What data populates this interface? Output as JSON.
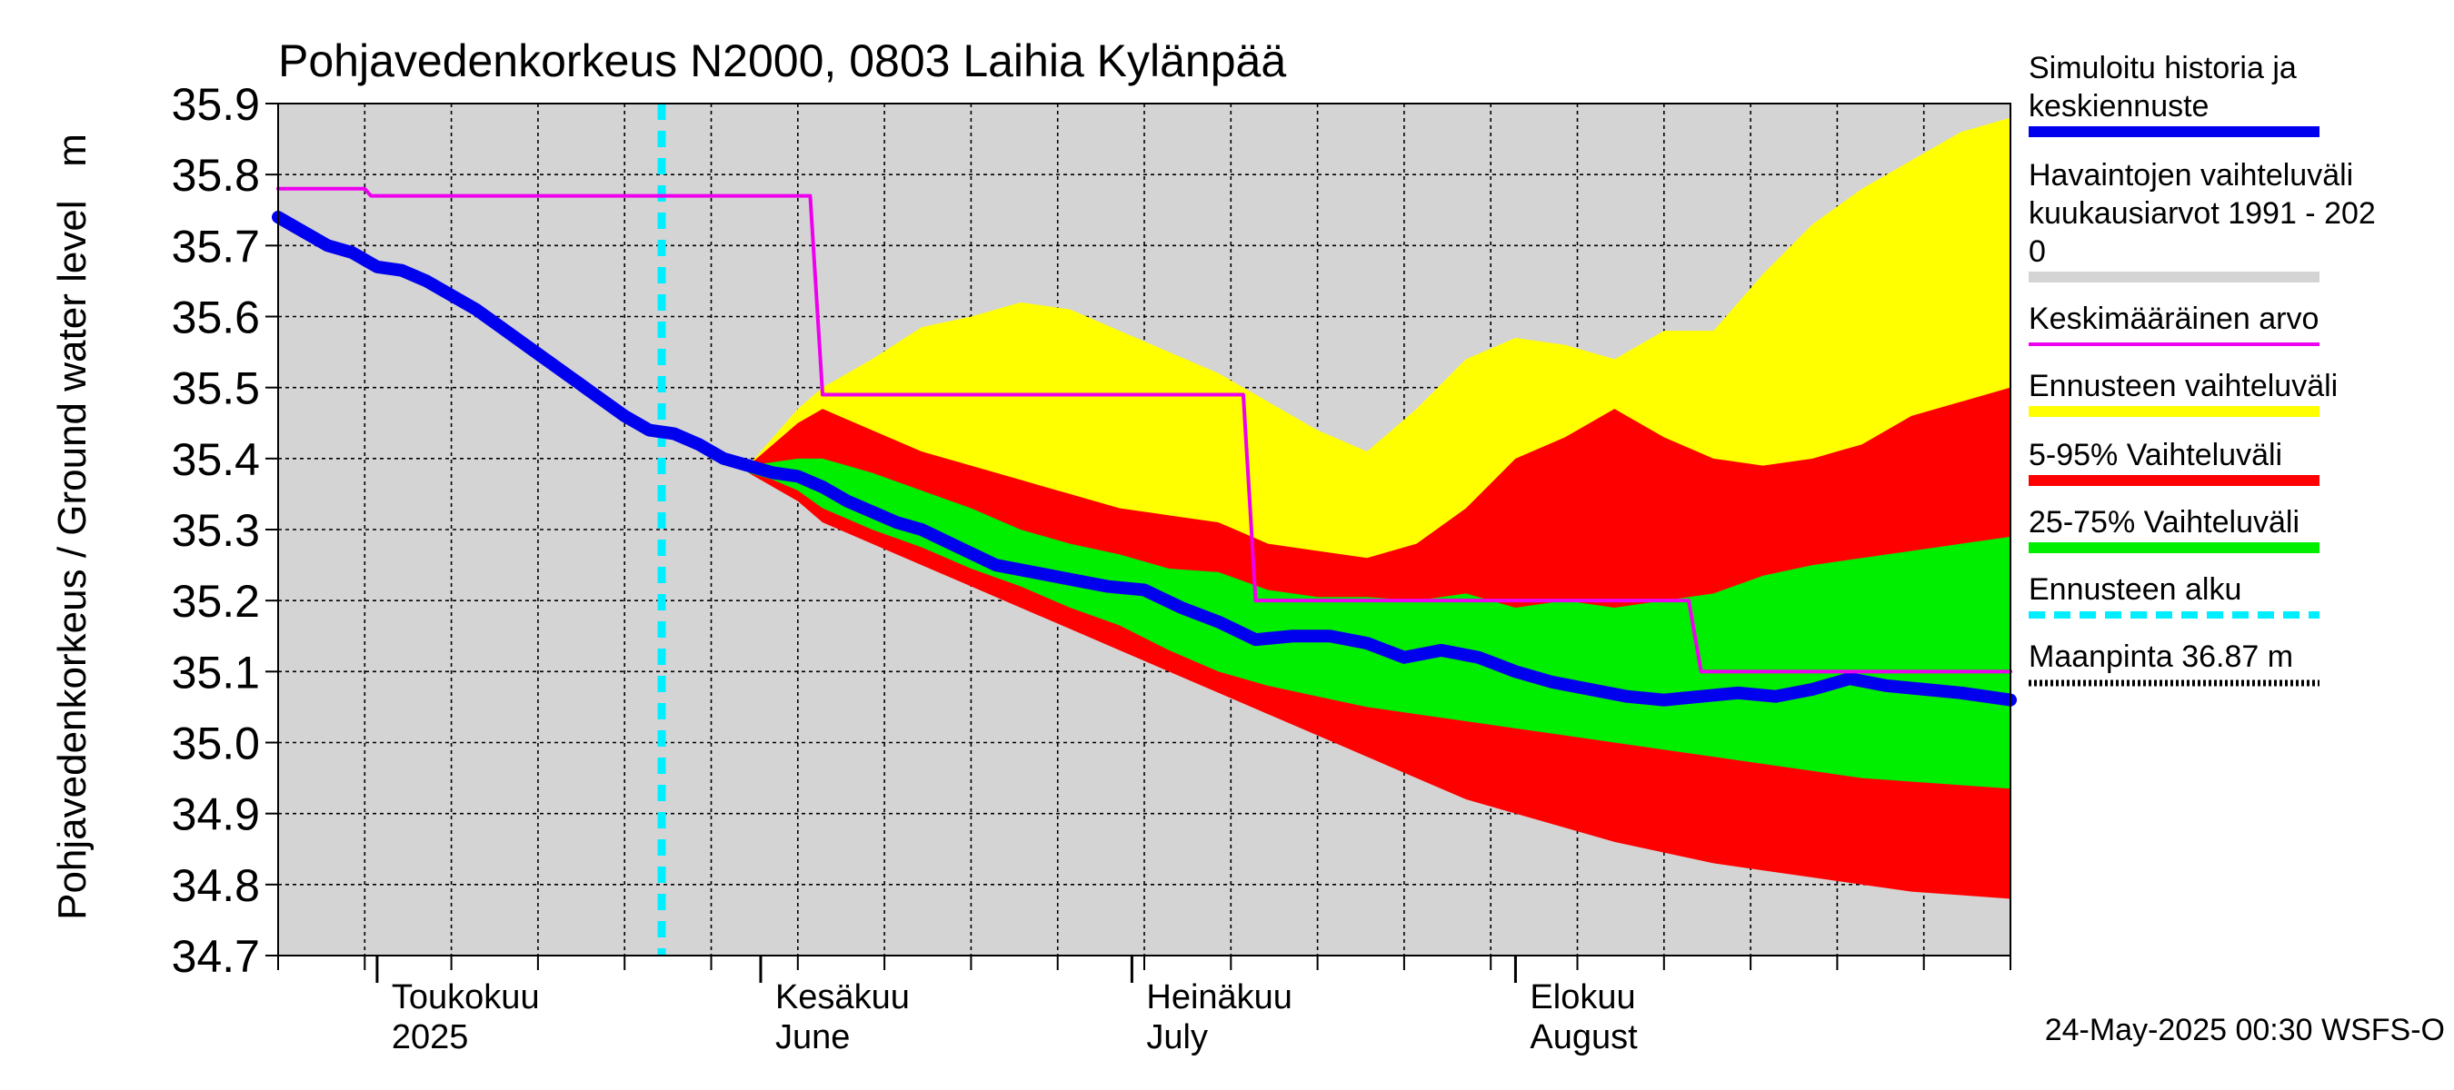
{
  "chart_data": {
    "type": "area",
    "title": "Pohjavedenkorkeus N2000, 0803 Laihia Kylänpää",
    "ylabel": "Pohjavedenkorkeus / Ground water level   m",
    "ylim": [
      34.7,
      35.9
    ],
    "yticks": [
      "35.9",
      "35.8",
      "35.7",
      "35.6",
      "35.5",
      "35.4",
      "35.3",
      "35.2",
      "35.1",
      "35.0",
      "34.9",
      "34.8",
      "34.7"
    ],
    "xlim_days": [
      0,
      140
    ],
    "x_reference": "day 0 = 2025-04-23",
    "x_tick_labels": [
      {
        "line1": "Toukokuu",
        "line2": "2025",
        "day": 8
      },
      {
        "line1": "Kesäkuu",
        "line2": "June",
        "day": 39
      },
      {
        "line1": "Heinäkuu",
        "line2": "July",
        "day": 69
      },
      {
        "line1": "Elokuu",
        "line2": "August",
        "day": 100
      }
    ],
    "grid": true,
    "background_color": "#d4d4d4",
    "forecast_start_day": 31,
    "timestamp": "24-May-2025 00:30 WSFS-O",
    "legend": [
      {
        "label_lines": [
          "Simuloitu historia ja",
          "keskiennuste"
        ],
        "color": "#0000ee",
        "style": "thick"
      },
      {
        "label_lines": [
          "Havaintojen vaihteluväli",
          " kuukausiarvot 1991 - 202",
          "0"
        ],
        "color": "#d4d4d4",
        "style": "thick"
      },
      {
        "label_lines": [
          "Keskimääräinen arvo"
        ],
        "color": "#ee00ee",
        "style": "thin"
      },
      {
        "label_lines": [
          "Ennusteen vaihteluväli"
        ],
        "color": "#ffff00",
        "style": "thick"
      },
      {
        "label_lines": [
          "5-95% Vaihteluväli"
        ],
        "color": "#ff0000",
        "style": "thick"
      },
      {
        "label_lines": [
          "25-75% Vaihteluväli"
        ],
        "color": "#00ee00",
        "style": "thick"
      },
      {
        "label_lines": [
          "Ennusteen alku"
        ],
        "color": "#00eeff",
        "style": "dashed"
      },
      {
        "label_lines": [
          "Maanpinta 36.87 m"
        ],
        "color": "#000000",
        "style": "dotted"
      }
    ],
    "series": [
      {
        "name": "Simuloitu historia ja keskiennuste",
        "color": "#0000ee",
        "x": [
          0,
          2,
          4,
          6,
          8,
          10,
          12,
          14,
          16,
          18,
          20,
          22,
          24,
          26,
          28,
          30,
          32,
          34,
          36,
          38,
          40,
          42,
          44,
          46,
          48,
          50,
          52,
          55,
          58,
          61,
          64,
          67,
          70,
          73,
          76,
          79,
          82,
          85,
          88,
          91,
          94,
          97,
          100,
          103,
          106,
          109,
          112,
          115,
          118,
          121,
          124,
          127,
          130,
          133,
          136,
          140
        ],
        "y": [
          35.74,
          35.72,
          35.7,
          35.69,
          35.67,
          35.665,
          35.65,
          35.63,
          35.61,
          35.585,
          35.56,
          35.535,
          35.51,
          35.485,
          35.46,
          35.44,
          35.435,
          35.42,
          35.4,
          35.39,
          35.38,
          35.375,
          35.36,
          35.34,
          35.325,
          35.31,
          35.3,
          35.275,
          35.25,
          35.24,
          35.23,
          35.22,
          35.215,
          35.19,
          35.17,
          35.145,
          35.15,
          35.15,
          35.14,
          35.12,
          35.13,
          35.12,
          35.1,
          35.085,
          35.075,
          35.065,
          35.06,
          35.065,
          35.07,
          35.065,
          35.075,
          35.09,
          35.08,
          35.075,
          35.07,
          35.06
        ]
      },
      {
        "name": "Keskimääräinen arvo",
        "color": "#ee00ee",
        "x": [
          0,
          7,
          7.5,
          43,
          44,
          78,
          79,
          114,
          115,
          140
        ],
        "y": [
          35.78,
          35.78,
          35.77,
          35.77,
          35.49,
          35.49,
          35.2,
          35.2,
          35.1,
          35.1
        ]
      }
    ],
    "bands": [
      {
        "name": "Ennusteen vaihteluväli",
        "color": "#ffff00",
        "x": [
          38,
          40,
          42,
          44,
          48,
          52,
          56,
          60,
          64,
          68,
          72,
          76,
          80,
          84,
          88,
          92,
          96,
          100,
          104,
          108,
          112,
          116,
          120,
          124,
          128,
          132,
          136,
          140
        ],
        "upper": [
          35.39,
          35.43,
          35.47,
          35.5,
          35.54,
          35.585,
          35.6,
          35.62,
          35.61,
          35.58,
          35.55,
          35.52,
          35.48,
          35.44,
          35.41,
          35.47,
          35.54,
          35.57,
          35.56,
          35.54,
          35.58,
          35.58,
          35.66,
          35.73,
          35.78,
          35.82,
          35.86,
          35.88
        ],
        "lower": [
          35.38,
          35.365,
          35.345,
          35.32,
          35.29,
          35.26,
          35.23,
          35.2,
          35.175,
          35.145,
          35.11,
          35.08,
          35.05,
          35.025,
          34.995,
          34.97,
          34.945,
          34.92,
          34.895,
          34.87,
          34.855,
          34.845,
          34.835,
          34.825,
          34.815,
          34.8,
          34.79,
          34.78
        ]
      },
      {
        "name": "5-95% Vaihteluväli",
        "color": "#ff0000",
        "x": [
          38,
          40,
          42,
          44,
          48,
          52,
          56,
          60,
          64,
          68,
          72,
          76,
          80,
          84,
          88,
          92,
          96,
          100,
          104,
          108,
          112,
          116,
          120,
          124,
          128,
          132,
          136,
          140
        ],
        "upper": [
          35.39,
          35.42,
          35.45,
          35.47,
          35.44,
          35.41,
          35.39,
          35.37,
          35.35,
          35.33,
          35.32,
          35.31,
          35.28,
          35.27,
          35.26,
          35.28,
          35.33,
          35.4,
          35.43,
          35.47,
          35.43,
          35.4,
          35.39,
          35.4,
          35.42,
          35.46,
          35.48,
          35.5
        ],
        "lower": [
          35.38,
          35.36,
          35.34,
          35.31,
          35.28,
          35.25,
          35.22,
          35.19,
          35.16,
          35.13,
          35.1,
          35.07,
          35.04,
          35.01,
          34.98,
          34.95,
          34.92,
          34.9,
          34.88,
          34.86,
          34.845,
          34.83,
          34.82,
          34.81,
          34.8,
          34.79,
          34.785,
          34.78
        ]
      },
      {
        "name": "25-75% Vaihteluväli",
        "color": "#00ee00",
        "x": [
          38,
          40,
          42,
          44,
          48,
          52,
          56,
          60,
          64,
          68,
          72,
          76,
          80,
          84,
          88,
          92,
          96,
          100,
          104,
          108,
          112,
          116,
          120,
          124,
          128,
          132,
          136,
          140
        ],
        "upper": [
          35.39,
          35.395,
          35.4,
          35.4,
          35.38,
          35.355,
          35.33,
          35.3,
          35.28,
          35.265,
          35.245,
          35.24,
          35.215,
          35.205,
          35.205,
          35.2,
          35.21,
          35.19,
          35.2,
          35.19,
          35.2,
          35.21,
          35.235,
          35.25,
          35.26,
          35.27,
          35.28,
          35.29
        ],
        "lower": [
          35.38,
          35.37,
          35.355,
          35.33,
          35.3,
          35.275,
          35.245,
          35.22,
          35.19,
          35.165,
          35.13,
          35.1,
          35.08,
          35.065,
          35.05,
          35.04,
          35.03,
          35.02,
          35.01,
          35.0,
          34.99,
          34.98,
          34.97,
          34.96,
          34.95,
          34.945,
          34.94,
          34.935
        ]
      }
    ]
  }
}
